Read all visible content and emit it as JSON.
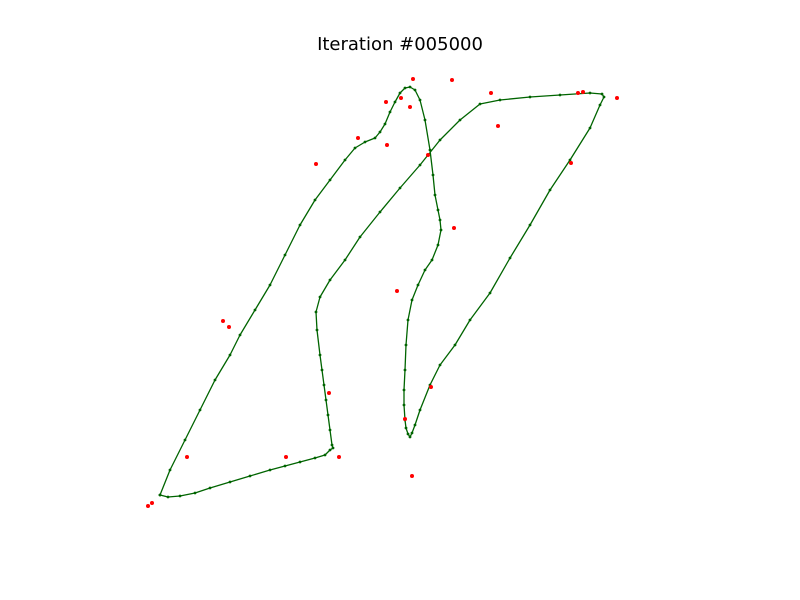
{
  "chart_data": {
    "type": "scatter",
    "title": "Iteration #005000",
    "xlabel": "",
    "ylabel": "",
    "axes_visible": false,
    "grid": false,
    "legend": "none",
    "colors": {
      "path": "#006400",
      "path_nodes": "#006400",
      "targets": "#ff0000"
    },
    "series": [
      {
        "style": "closed line with node markers",
        "x": [
          160,
          170,
          185,
          200,
          215,
          230,
          240,
          255,
          270,
          285,
          300,
          315,
          330,
          345,
          355,
          365,
          375,
          380,
          385,
          390,
          395,
          400,
          405,
          410,
          415,
          420,
          425,
          430,
          433,
          435,
          438,
          440,
          441,
          438,
          432,
          425,
          418,
          412,
          408,
          406,
          405,
          404,
          404,
          405,
          406,
          408,
          410,
          412,
          415,
          420,
          430,
          440,
          455,
          470,
          490,
          510,
          530,
          550,
          570,
          590,
          600,
          604,
          602,
          590,
          560,
          530,
          500,
          480,
          460,
          440,
          420,
          400,
          380,
          360,
          345,
          330,
          320,
          316,
          317,
          320,
          322,
          324,
          326,
          328,
          330,
          332,
          333,
          330,
          325,
          315,
          300,
          285,
          270,
          250,
          230,
          210,
          195,
          180,
          168,
          160
        ],
        "y": [
          495,
          470,
          440,
          410,
          380,
          355,
          335,
          310,
          285,
          255,
          225,
          200,
          180,
          160,
          148,
          142,
          138,
          132,
          124,
          112,
          102,
          93,
          88,
          87,
          90,
          100,
          120,
          150,
          175,
          195,
          210,
          220,
          230,
          245,
          260,
          270,
          285,
          300,
          320,
          345,
          370,
          390,
          405,
          420,
          428,
          434,
          437,
          433,
          425,
          410,
          385,
          365,
          345,
          320,
          293,
          258,
          225,
          190,
          160,
          128,
          105,
          97,
          94,
          93,
          95,
          97,
          100,
          104,
          120,
          140,
          165,
          188,
          212,
          237,
          260,
          280,
          297,
          312,
          330,
          355,
          370,
          385,
          400,
          415,
          430,
          445,
          448,
          450,
          455,
          458,
          462,
          466,
          470,
          476,
          482,
          488,
          493,
          496,
          497,
          495
        ]
      },
      {
        "style": "points",
        "x": [
          148,
          152,
          187,
          223,
          229,
          286,
          339,
          316,
          329,
          358,
          386,
          387,
          397,
          401,
          405,
          410,
          413,
          428,
          452,
          454,
          491,
          498,
          571,
          578,
          583,
          617,
          431,
          412
        ],
        "y": [
          506,
          503,
          457,
          321,
          327,
          457,
          457,
          164,
          393,
          138,
          102,
          145,
          291,
          98,
          419,
          107,
          79,
          155,
          80,
          228,
          93,
          126,
          163,
          93,
          92,
          98,
          387,
          476
        ]
      }
    ]
  }
}
